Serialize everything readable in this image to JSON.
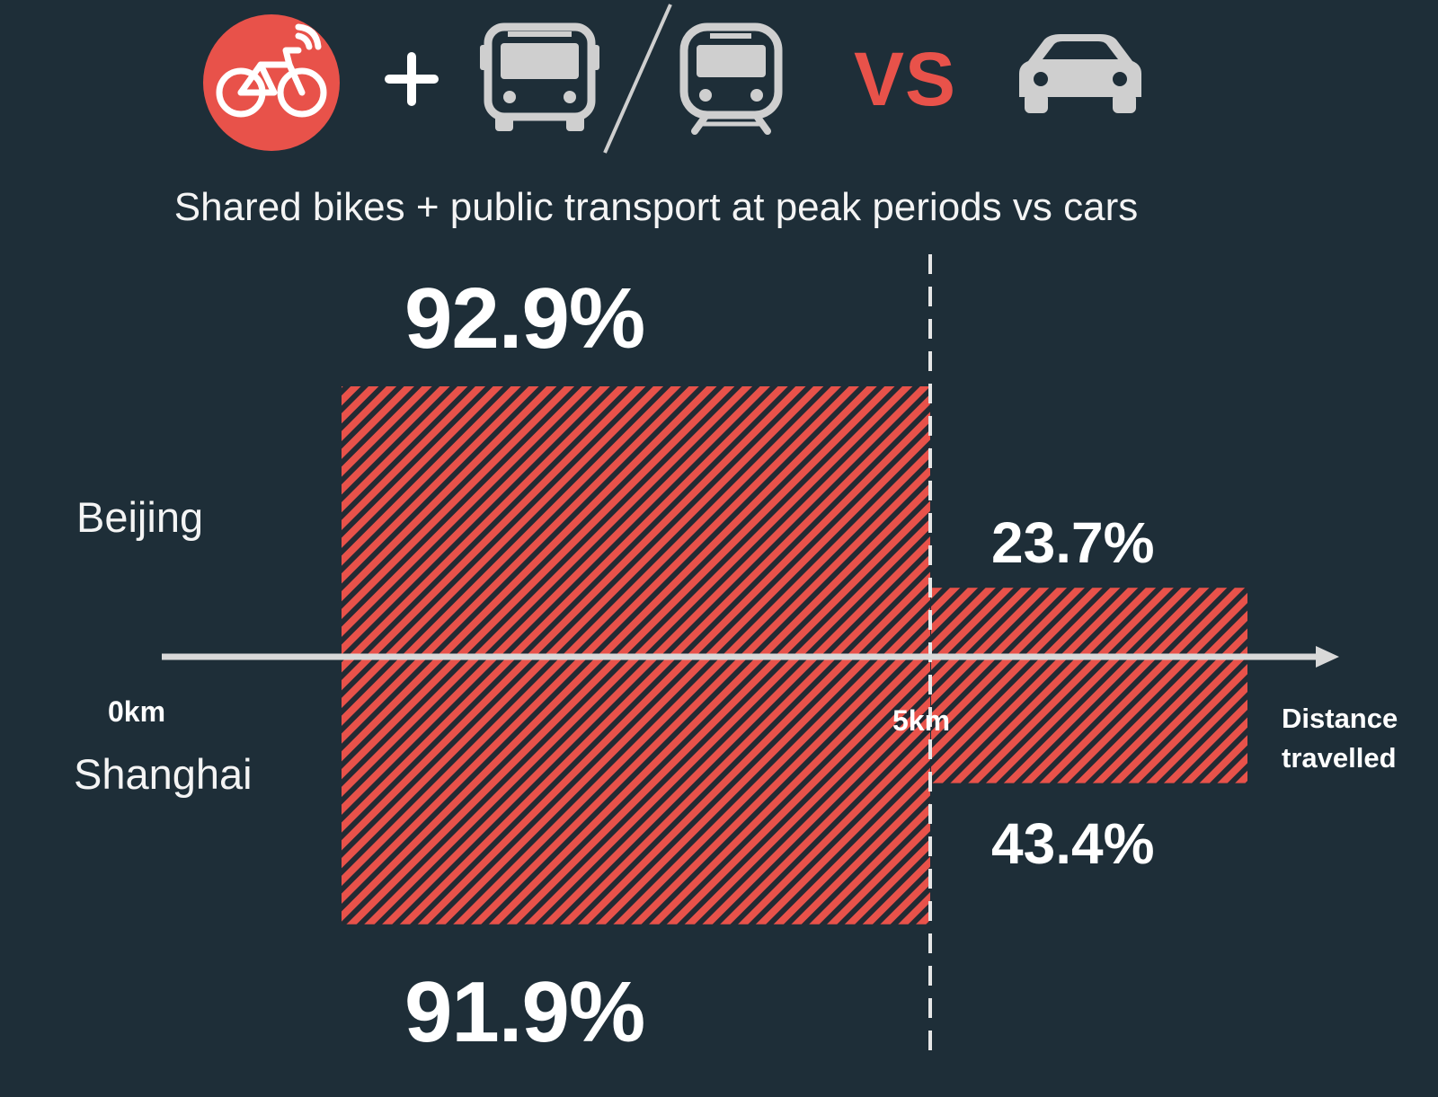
{
  "header": {
    "vs_label": "VS",
    "subtitle": "Shared bikes + public transport at peak periods vs cars",
    "icons": [
      "shared-bike-icon",
      "plus-icon",
      "bus-icon",
      "slash-divider",
      "train-icon",
      "car-icon"
    ]
  },
  "colors": {
    "background": "#1e2e38",
    "accent": "#e8524a",
    "hatch_dark": "#2a2f36",
    "axis": "#d9d9d9",
    "icon_grey": "#cfcfcf",
    "text": "#ffffff"
  },
  "chart_data": {
    "type": "bar",
    "title": "Shared bikes + public transport at peak periods vs cars",
    "xlabel": "Distance travelled",
    "x_ticks": [
      "0km",
      "5km"
    ],
    "categories": [
      "0km–5km",
      "5km+"
    ],
    "series": [
      {
        "name": "Beijing",
        "values": [
          92.9,
          23.7
        ],
        "labels": [
          "92.9%",
          "23.7%"
        ]
      },
      {
        "name": "Shanghai",
        "values": [
          91.9,
          43.4
        ],
        "labels": [
          "91.9%",
          "43.4%"
        ]
      }
    ],
    "unit": "%",
    "ylim": [
      0,
      100
    ],
    "fill": "red diagonal hatching",
    "reference_line": "dashed vertical line at 5km"
  }
}
